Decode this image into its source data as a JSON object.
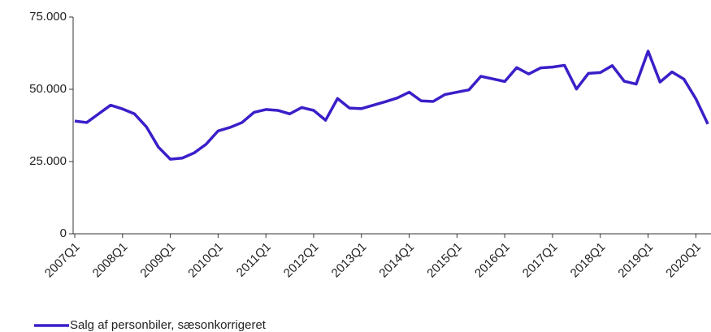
{
  "chart_data": {
    "type": "line",
    "categories": [
      "2007Q1",
      null,
      null,
      null,
      "2008Q1",
      null,
      null,
      null,
      "2009Q1",
      null,
      null,
      null,
      "2010Q1",
      null,
      null,
      null,
      "2011Q1",
      null,
      null,
      null,
      "2012Q1",
      null,
      null,
      null,
      "2013Q1",
      null,
      null,
      null,
      "2014Q1",
      null,
      null,
      null,
      "2015Q1",
      null,
      null,
      null,
      "2016Q1",
      null,
      null,
      null,
      "2017Q1",
      null,
      null,
      null,
      "2018Q1",
      null,
      null,
      null,
      "2019Q1",
      null,
      null,
      null,
      "2020Q1",
      null
    ],
    "series": [
      {
        "name": "Salg af personbiler, sæsonkorrigeret",
        "color": "#3a1fc9",
        "values": [
          39000,
          38500,
          41500,
          44500,
          43200,
          41500,
          37000,
          30000,
          25800,
          26200,
          28000,
          31000,
          35600,
          36800,
          38500,
          42000,
          43000,
          42700,
          41500,
          43700,
          42700,
          39300,
          46800,
          43500,
          43300,
          44500,
          45700,
          47000,
          49000,
          46000,
          45800,
          48200,
          49000,
          49800,
          54500,
          53600,
          52700,
          57500,
          55300,
          57400,
          57700,
          58300,
          50100,
          55500,
          55800,
          58200,
          52800,
          51800,
          63200,
          52500,
          56000,
          53500,
          46700,
          38000
        ]
      }
    ],
    "ylim": [
      0,
      75000
    ],
    "yticks": [
      0,
      {
        "value": 25000,
        "label": "25.000"
      },
      {
        "value": 50000,
        "label": "50.000"
      },
      {
        "value": 75000,
        "label": "75.000"
      }
    ],
    "legend": "bottom-left"
  }
}
